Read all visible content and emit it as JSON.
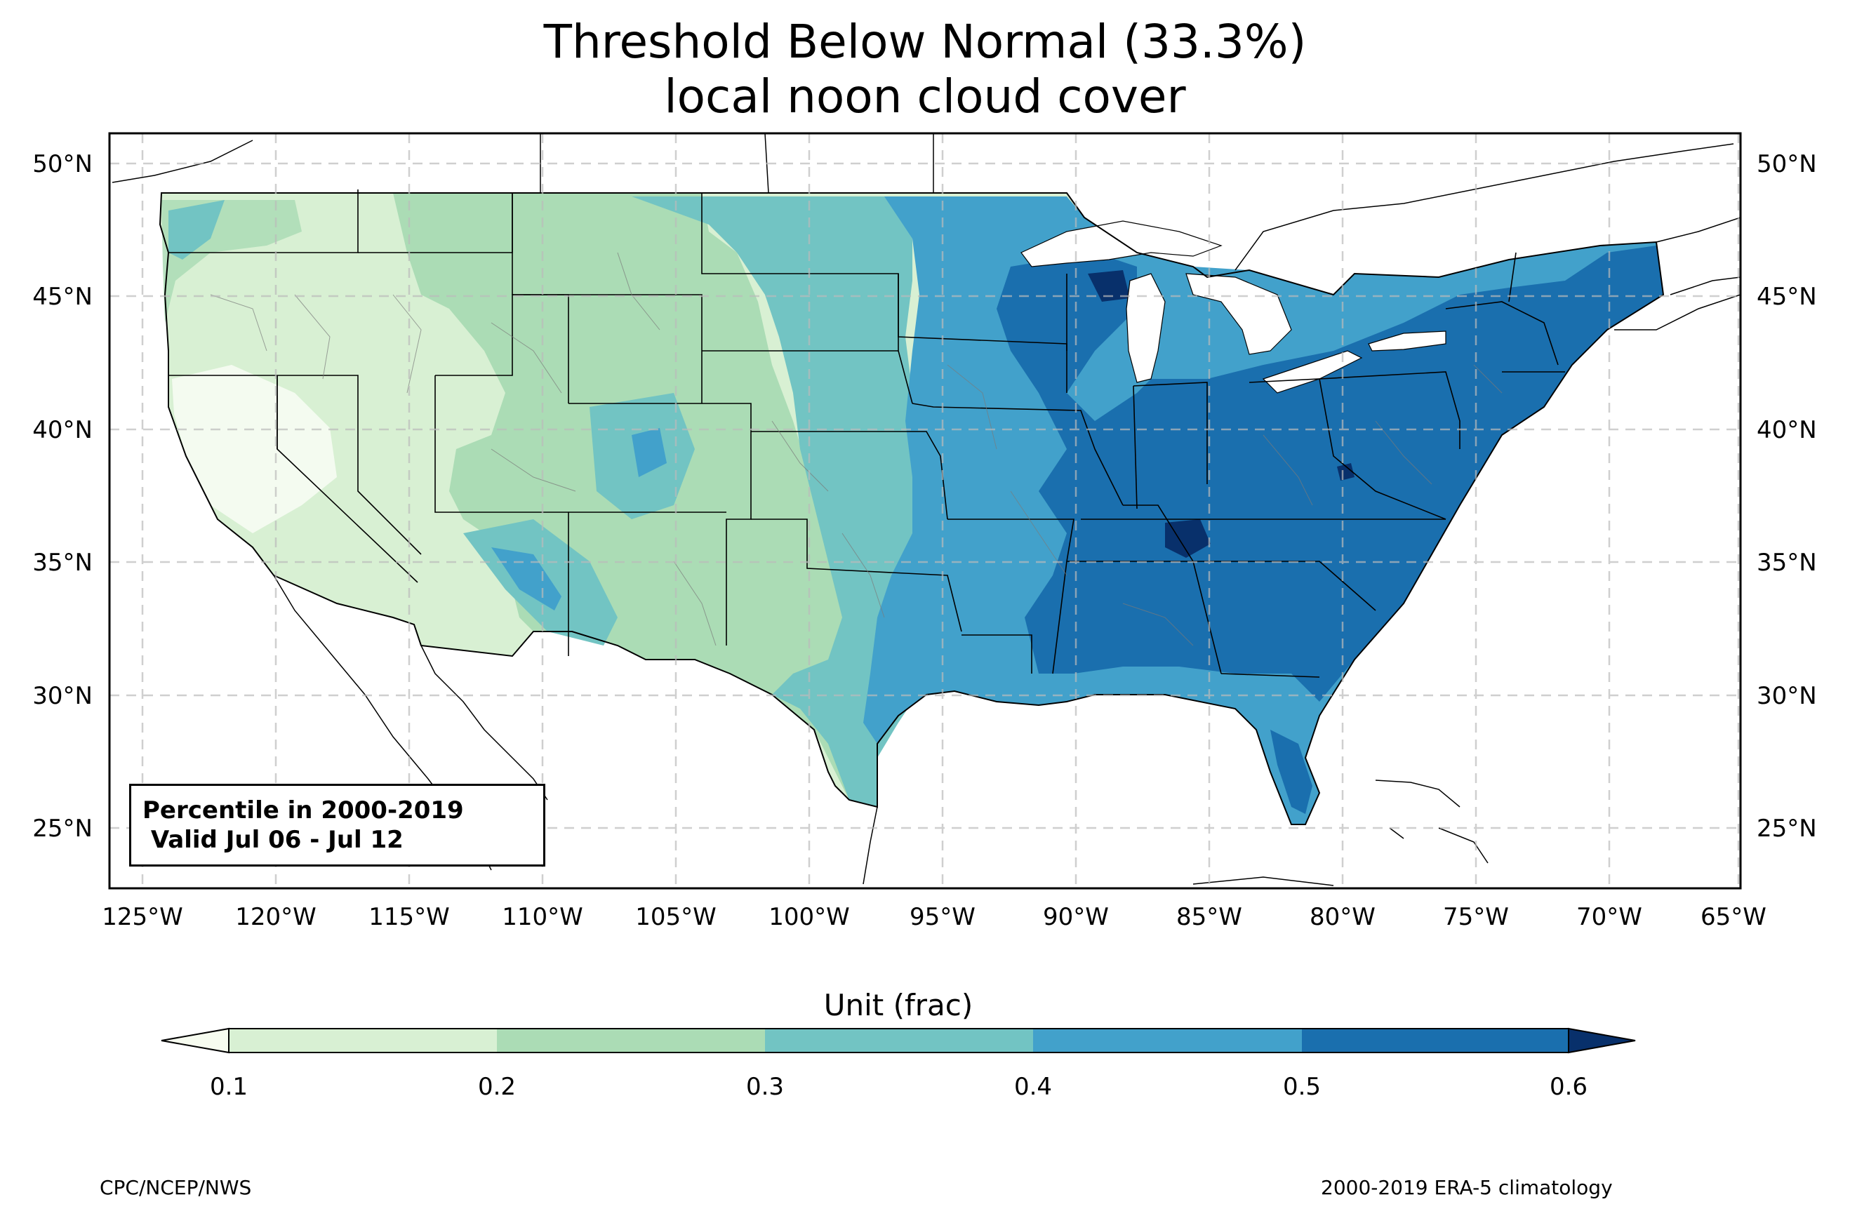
{
  "title": {
    "line1": "Threshold Below Normal (33.3%)",
    "line2": "local noon cloud cover"
  },
  "map": {
    "lon_ticks": [
      "125°W",
      "120°W",
      "115°W",
      "110°W",
      "105°W",
      "100°W",
      "95°W",
      "90°W",
      "85°W",
      "80°W",
      "75°W",
      "70°W",
      "65°W"
    ],
    "lat_ticks": [
      "50°N",
      "45°N",
      "40°N",
      "35°N",
      "30°N",
      "25°N"
    ],
    "lon_range": [
      -126.2,
      -64.9
    ],
    "lat_range": [
      22.8,
      51.3
    ],
    "gridlines": true,
    "region": "Contiguous United States",
    "field": "Threshold of below-normal tercile of local noon cloud cover",
    "spatial_pattern": [
      {
        "area": "California / Nevada / Oregon",
        "range": "0.1-0.2"
      },
      {
        "area": "Rockies / Great Basin",
        "range": "0.2-0.3"
      },
      {
        "area": "Great Plains",
        "range": "0.3-0.4"
      },
      {
        "area": "Midwest / Gulf Coast / Texas coast",
        "range": "0.4-0.5"
      },
      {
        "area": "Southeast / Ohio Valley / Northeast",
        "range": "0.5-0.6"
      },
      {
        "area": "Tennessee / Wisconsin spots",
        "range": ">0.6"
      }
    ]
  },
  "info_box": {
    "line1": "Percentile in 2000-2019",
    "line2": " Valid Jul 06 - Jul 12"
  },
  "colorbar": {
    "label": "Unit (frac)",
    "ticks": [
      "0.1",
      "0.2",
      "0.3",
      "0.4",
      "0.5",
      "0.6"
    ],
    "colors": [
      "#f7fcf0",
      "#d8f0d3",
      "#abdcb5",
      "#72c4c3",
      "#42a1cb",
      "#1a6fae",
      "#08306b"
    ],
    "extend": "both"
  },
  "credits": {
    "left": "CPC/NCEP/NWS",
    "right": "2000-2019 ERA-5 climatology"
  }
}
